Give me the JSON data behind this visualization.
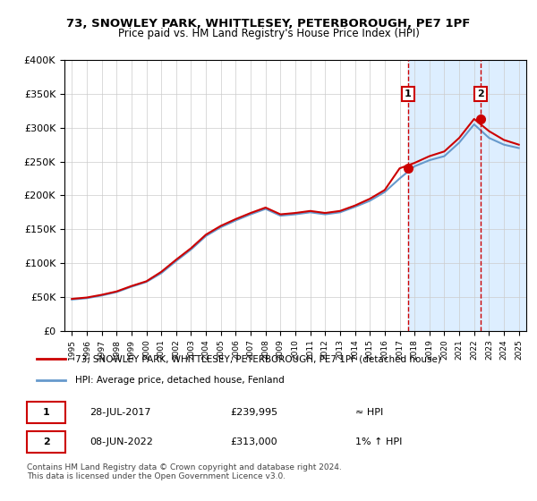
{
  "title": "73, SNOWLEY PARK, WHITTLESEY, PETERBOROUGH, PE7 1PF",
  "subtitle": "Price paid vs. HM Land Registry's House Price Index (HPI)",
  "legend_line1": "73, SNOWLEY PARK, WHITTLESEY, PETERBOROUGH, PE7 1PF (detached house)",
  "legend_line2": "HPI: Average price, detached house, Fenland",
  "annotation1_date": "28-JUL-2017",
  "annotation1_price": "£239,995",
  "annotation1_note": "≈ HPI",
  "annotation2_date": "08-JUN-2022",
  "annotation2_price": "£313,000",
  "annotation2_note": "1% ↑ HPI",
  "footnote": "Contains HM Land Registry data © Crown copyright and database right 2024.\nThis data is licensed under the Open Government Licence v3.0.",
  "hpi_color": "#6699cc",
  "price_color": "#cc0000",
  "dashed_line_color": "#cc0000",
  "shaded_bg_color": "#ddeeff",
  "ylim": [
    0,
    400000
  ],
  "yticks": [
    0,
    50000,
    100000,
    150000,
    200000,
    250000,
    300000,
    350000,
    400000
  ],
  "ytick_labels": [
    "£0",
    "£50K",
    "£100K",
    "£150K",
    "£200K",
    "£250K",
    "£300K",
    "£350K",
    "£400K"
  ],
  "xstart_year": 1995,
  "xend_year": 2025,
  "sale1_year": 2017.57,
  "sale2_year": 2022.44,
  "sale1_value": 239995,
  "sale2_value": 313000,
  "hpi_years": [
    1995,
    1996,
    1997,
    1998,
    1999,
    2000,
    2001,
    2002,
    2003,
    2004,
    2005,
    2006,
    2007,
    2008,
    2009,
    2010,
    2011,
    2012,
    2013,
    2014,
    2015,
    2016,
    2017,
    2018,
    2019,
    2020,
    2021,
    2022,
    2023,
    2024,
    2025
  ],
  "hpi_values": [
    46000,
    48000,
    52000,
    57000,
    65000,
    72000,
    85000,
    103000,
    120000,
    140000,
    153000,
    163000,
    172000,
    180000,
    170000,
    172000,
    175000,
    172000,
    175000,
    183000,
    192000,
    205000,
    225000,
    243000,
    252000,
    258000,
    278000,
    305000,
    285000,
    275000,
    270000
  ],
  "price_years": [
    1995,
    1996,
    1997,
    1998,
    1999,
    2000,
    2001,
    2002,
    2003,
    2004,
    2005,
    2006,
    2007,
    2008,
    2009,
    2010,
    2011,
    2012,
    2013,
    2014,
    2015,
    2016,
    2017,
    2018,
    2019,
    2020,
    2021,
    2022,
    2023,
    2024,
    2025
  ],
  "price_values": [
    47000,
    49000,
    53000,
    58000,
    66000,
    73000,
    87000,
    105000,
    122000,
    142000,
    155000,
    165000,
    174000,
    182000,
    172000,
    174000,
    177000,
    174000,
    177000,
    185000,
    195000,
    208000,
    240000,
    248000,
    258000,
    265000,
    285000,
    313000,
    295000,
    282000,
    275000
  ]
}
